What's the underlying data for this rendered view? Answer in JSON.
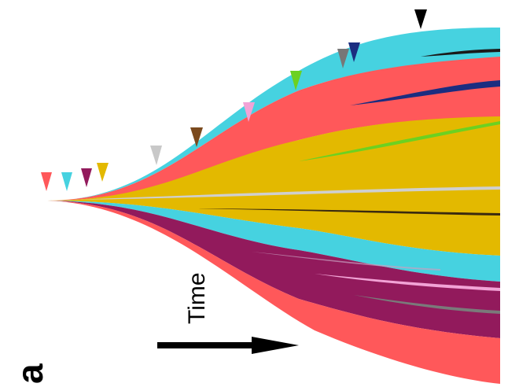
{
  "panel_label": "a",
  "time_label": "Time",
  "colors": {
    "cyan": "#46d2e0",
    "red": "#ff585a",
    "yellow": "#e3b900",
    "purple": "#921a5c",
    "black": "#000000"
  },
  "clones": [
    {
      "name": "founder-red",
      "color": "#ff585a"
    },
    {
      "name": "cyan",
      "color": "#46d2e0"
    },
    {
      "name": "purple",
      "color": "#921a5c"
    },
    {
      "name": "yellow",
      "color": "#e3b900"
    },
    {
      "name": "silver",
      "color": "#c8c8c8"
    },
    {
      "name": "brown",
      "color": "#7b4a1e"
    },
    {
      "name": "pink",
      "color": "#f2a3d6"
    },
    {
      "name": "green",
      "color": "#6cd121"
    },
    {
      "name": "gray",
      "color": "#777777"
    },
    {
      "name": "navy",
      "color": "#1b2d80"
    },
    {
      "name": "black",
      "color": "#000000"
    }
  ]
}
